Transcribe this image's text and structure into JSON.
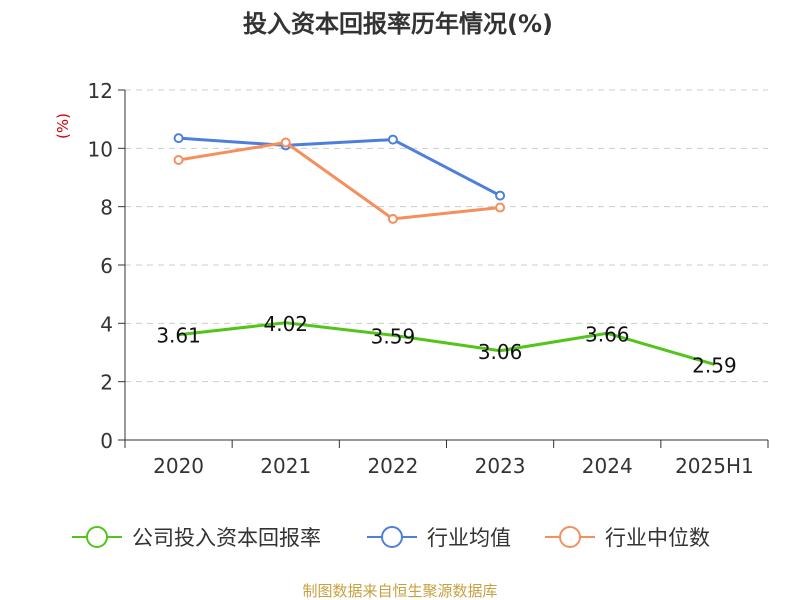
{
  "chart_data": {
    "type": "line",
    "title": "投入资本回报率历年情况(%)",
    "ylabel": "(%)",
    "xlabel": "",
    "categories": [
      "2020",
      "2021",
      "2022",
      "2023",
      "2024",
      "2025H1"
    ],
    "ylim": [
      0,
      12
    ],
    "yticks": [
      "0",
      "2",
      "4",
      "6",
      "8",
      "10",
      "12"
    ],
    "grid": true,
    "legend_position": "bottom",
    "series": [
      {
        "name": "公司投入资本回报率",
        "color": "#52c41a",
        "values": [
          3.61,
          4.02,
          3.59,
          3.06,
          3.66,
          2.59
        ],
        "labels": [
          "3.61",
          "4.02",
          "3.59",
          "3.06",
          "3.66",
          "2.59"
        ],
        "show_markers": false
      },
      {
        "name": "行业均值",
        "color": "#4e7fdc",
        "values": [
          10.35,
          10.1,
          10.3,
          8.38,
          null,
          null
        ],
        "labels": [],
        "show_markers": true
      },
      {
        "name": "行业中位数",
        "color": "#f5905d",
        "values": [
          9.6,
          10.2,
          7.58,
          7.97,
          null,
          null
        ],
        "labels": [],
        "show_markers": true
      }
    ],
    "source": "制图数据来自恒生聚源数据库"
  }
}
